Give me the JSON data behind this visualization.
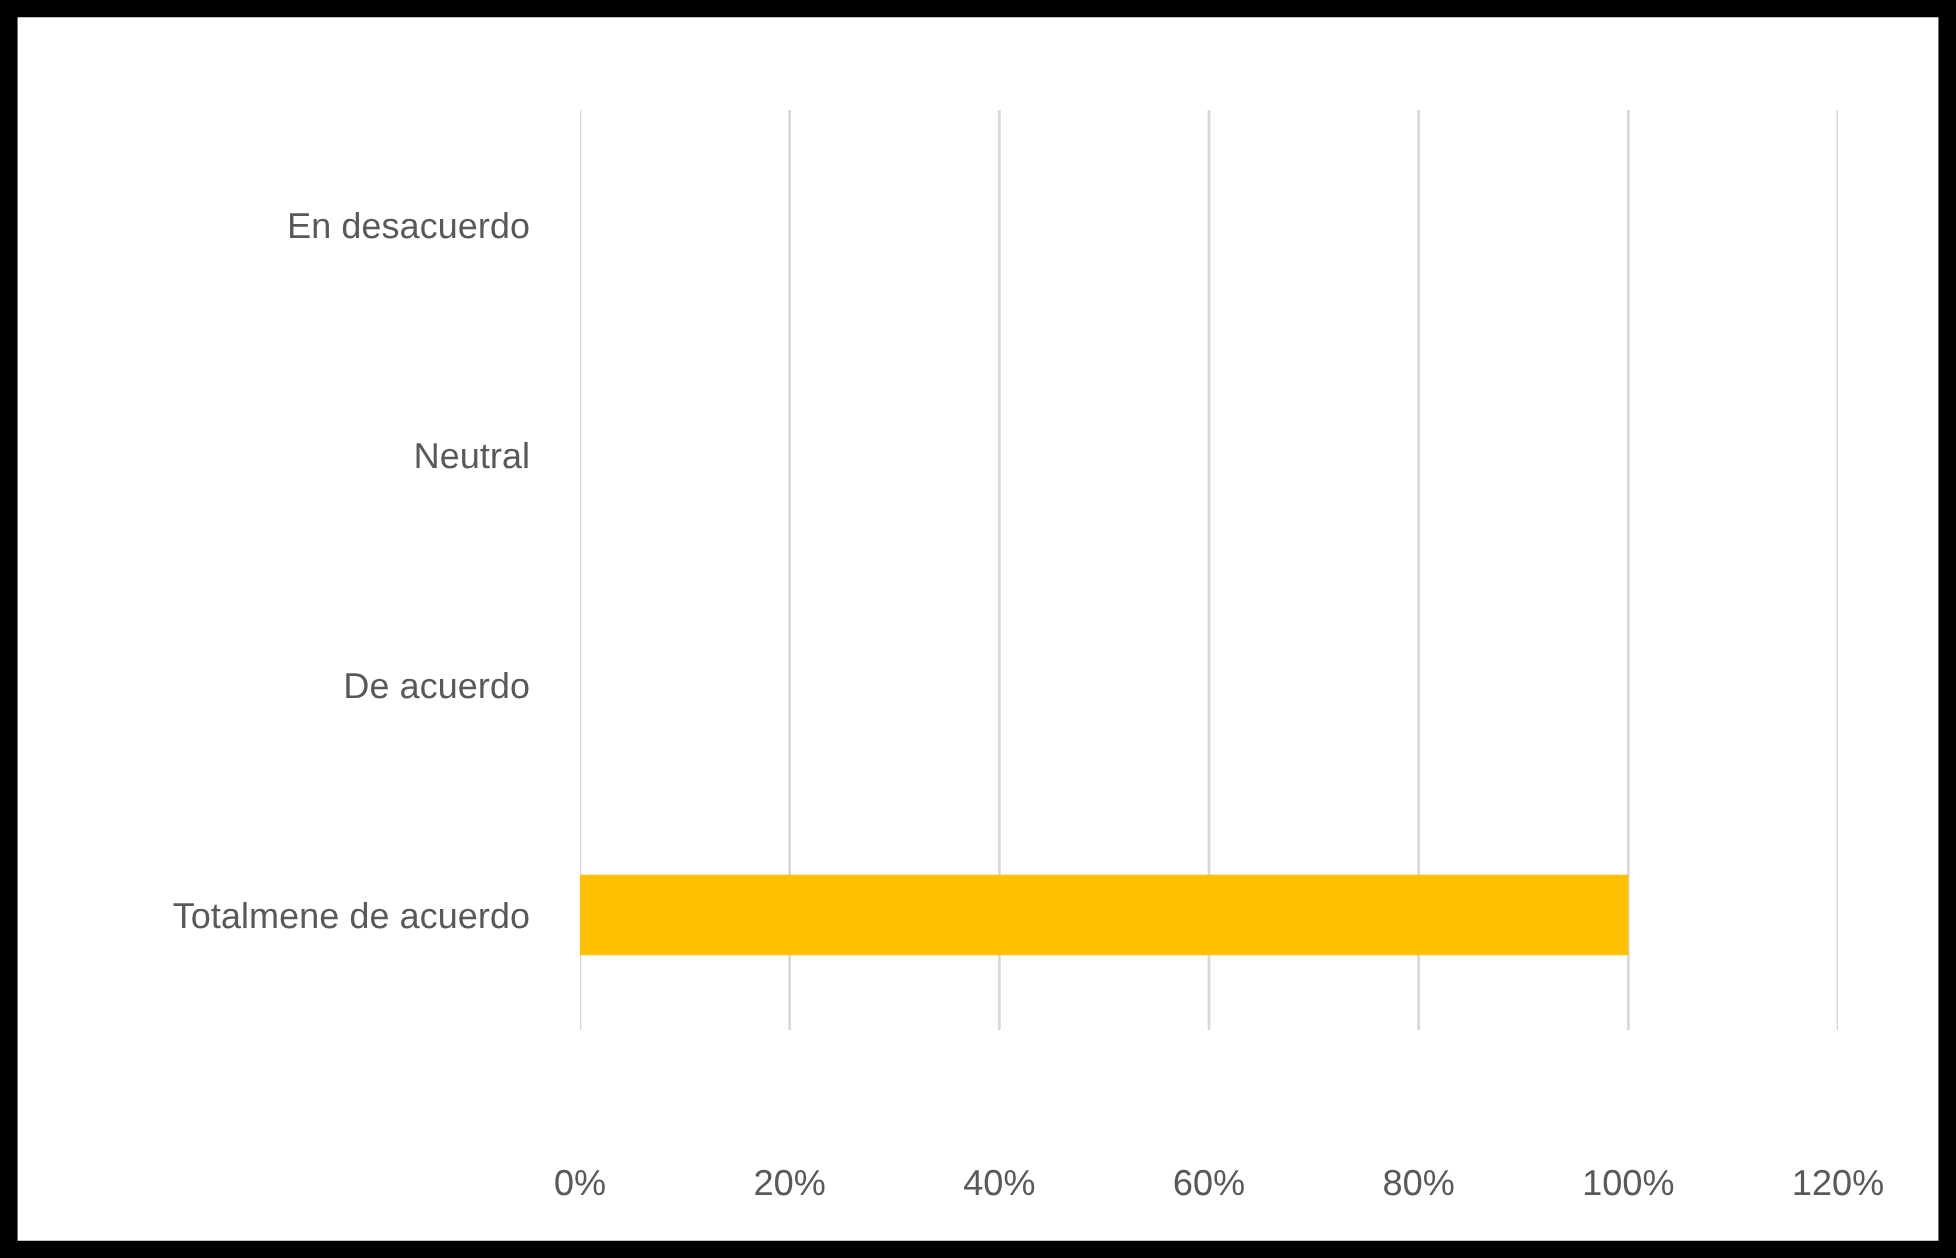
{
  "chart_data": {
    "type": "bar",
    "orientation": "horizontal",
    "categories": [
      "En desacuerdo",
      "Neutral",
      "De acuerdo",
      "Totalmene de acuerdo"
    ],
    "values": [
      0,
      0,
      0,
      100
    ],
    "color": "#ffc000",
    "xlim": [
      0,
      120
    ],
    "xticks": [
      {
        "value": 0,
        "label": "0%"
      },
      {
        "value": 20,
        "label": "20%"
      },
      {
        "value": 40,
        "label": "40%"
      },
      {
        "value": 60,
        "label": "60%"
      },
      {
        "value": 80,
        "label": "80%"
      },
      {
        "value": 100,
        "label": "100%"
      },
      {
        "value": 120,
        "label": "120%"
      }
    ],
    "grid": "x",
    "legend": false
  }
}
